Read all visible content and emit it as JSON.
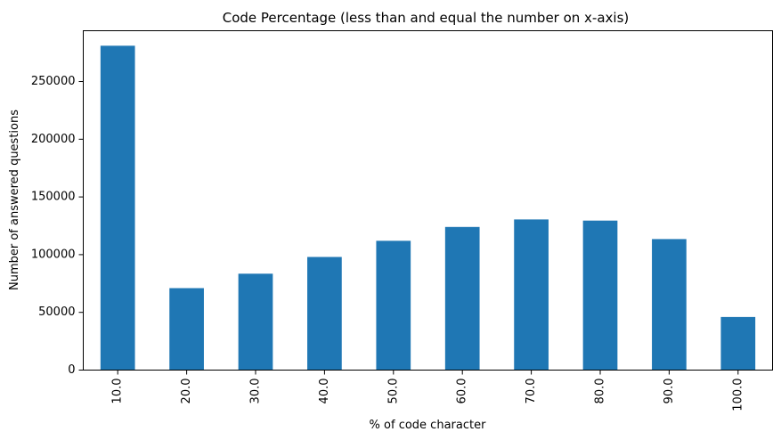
{
  "chart_data": {
    "type": "bar",
    "title": "Code Percentage (less than and equal the number on x-axis)",
    "xlabel": "% of code character",
    "ylabel": "Number of answered questions",
    "categories": [
      "10.0",
      "20.0",
      "30.0",
      "40.0",
      "50.0",
      "60.0",
      "70.0",
      "80.0",
      "90.0",
      "100.0"
    ],
    "values": [
      281000,
      71000,
      83500,
      98000,
      112000,
      124000,
      130500,
      129500,
      113500,
      46000
    ],
    "ylim": [
      0,
      294000
    ],
    "yticks": [
      0,
      50000,
      100000,
      150000,
      200000,
      250000
    ],
    "ytick_labels": [
      "0",
      "50000",
      "100000",
      "150000",
      "200000",
      "250000"
    ],
    "grid": false,
    "bar_color": "#1f77b4",
    "x_tick_rotation": "vertical"
  }
}
